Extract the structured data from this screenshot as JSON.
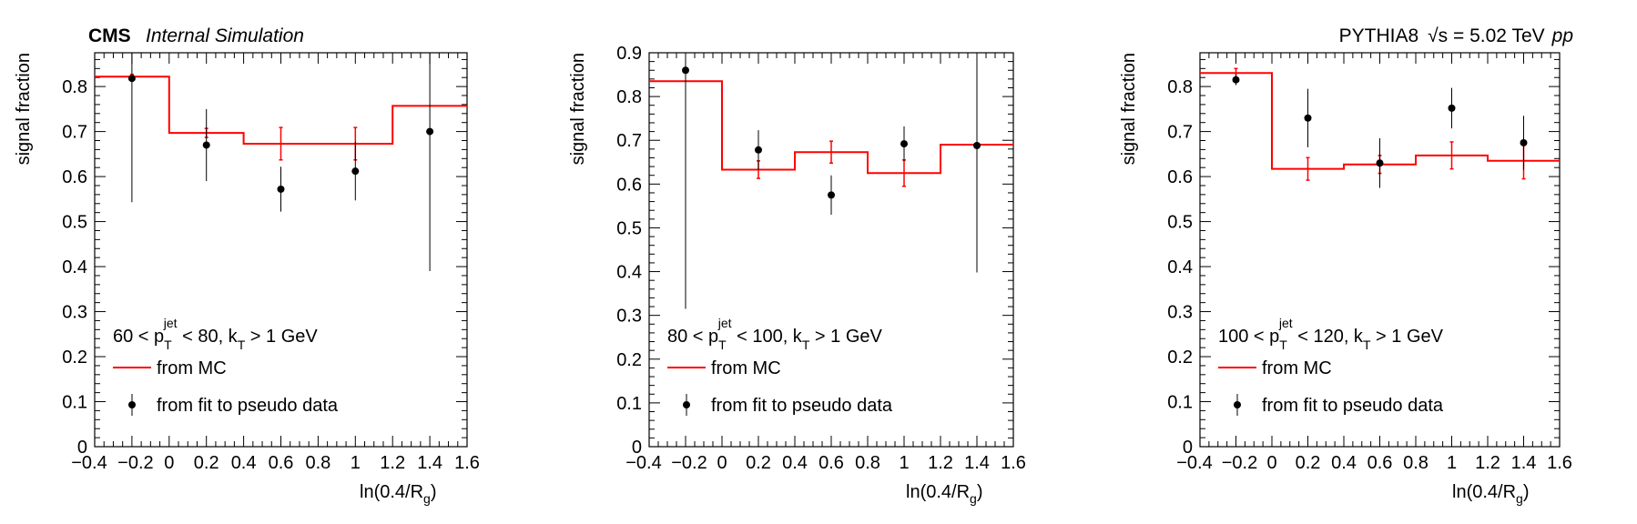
{
  "header": {
    "experiment": "CMS",
    "status": "Internal Simulation",
    "generator": "PYTHIA8",
    "energy_label": "√s = 5.02 TeV",
    "system": "pp"
  },
  "legend": {
    "mc_label": "from MC",
    "fit_label": "from fit to pseudo data",
    "mc_color": "#ff0000",
    "fit_color": "#000000"
  },
  "chart_data": [
    {
      "type": "line",
      "panel_label": "60 < p_T^jet < 80, k_T > 1 GeV",
      "xlabel": "ln(0.4/R_g)",
      "ylabel": "signal fraction",
      "xlim": [
        -0.4,
        1.6
      ],
      "ylim": [
        0,
        0.875
      ],
      "xticks": [
        -0.4,
        -0.2,
        0,
        0.2,
        0.4,
        0.6,
        0.8,
        1,
        1.2,
        1.4,
        1.6
      ],
      "yticks": [
        0,
        0.1,
        0.2,
        0.3,
        0.4,
        0.5,
        0.6,
        0.7,
        0.8
      ],
      "mc": {
        "name": "from MC",
        "bin_edges": [
          -0.4,
          0,
          0.4,
          0.8,
          1.2,
          1.6
        ],
        "values": [
          0.822,
          0.697,
          0.673,
          0.673,
          0.757
        ],
        "errors": [
          0.005,
          0.01,
          0.036,
          0.036,
          0.0
        ]
      },
      "fit": {
        "name": "from fit to pseudo data",
        "x": [
          -0.2,
          0.2,
          0.6,
          1.0,
          1.4
        ],
        "y": [
          0.818,
          0.67,
          0.572,
          0.612,
          0.7
        ],
        "yerr": [
          0.275,
          0.08,
          0.05,
          0.065,
          0.31
        ]
      }
    },
    {
      "type": "line",
      "panel_label": "80 < p_T^jet < 100, k_T > 1 GeV",
      "xlabel": "ln(0.4/R_g)",
      "ylabel": "signal fraction",
      "xlim": [
        -0.4,
        1.6
      ],
      "ylim": [
        0,
        0.9
      ],
      "xticks": [
        -0.4,
        -0.2,
        0,
        0.2,
        0.4,
        0.6,
        0.8,
        1,
        1.2,
        1.4,
        1.6
      ],
      "yticks": [
        0,
        0.1,
        0.2,
        0.3,
        0.4,
        0.5,
        0.6,
        0.7,
        0.8,
        0.9
      ],
      "mc": {
        "name": "from MC",
        "bin_edges": [
          -0.4,
          0,
          0.4,
          0.8,
          1.2,
          1.6
        ],
        "values": [
          0.835,
          0.633,
          0.673,
          0.625,
          0.69
        ],
        "errors": [
          0.0,
          0.02,
          0.025,
          0.03,
          0.0
        ]
      },
      "fit": {
        "name": "from fit to pseudo data",
        "x": [
          -0.2,
          0.2,
          0.6,
          1.0,
          1.4
        ],
        "y": [
          0.86,
          0.678,
          0.575,
          0.692,
          0.688
        ],
        "yerr": [
          0.545,
          0.045,
          0.045,
          0.04,
          0.29
        ]
      }
    },
    {
      "type": "line",
      "panel_label": "100 < p_T^jet < 120, k_T > 1 GeV",
      "xlabel": "ln(0.4/R_g)",
      "ylabel": "signal fraction",
      "xlim": [
        -0.4,
        1.6
      ],
      "ylim": [
        0,
        0.875
      ],
      "xticks": [
        -0.4,
        -0.2,
        0,
        0.2,
        0.4,
        0.6,
        0.8,
        1,
        1.2,
        1.4,
        1.6
      ],
      "yticks": [
        0,
        0.1,
        0.2,
        0.3,
        0.4,
        0.5,
        0.6,
        0.7,
        0.8
      ],
      "mc": {
        "name": "from MC",
        "bin_edges": [
          -0.4,
          0,
          0.4,
          0.8,
          1.2,
          1.6
        ],
        "values": [
          0.83,
          0.617,
          0.627,
          0.647,
          0.635
        ],
        "errors": [
          0.01,
          0.025,
          0.02,
          0.03,
          0.04
        ]
      },
      "fit": {
        "name": "from fit to pseudo data",
        "x": [
          -0.2,
          0.2,
          0.6,
          1.0,
          1.4
        ],
        "y": [
          0.815,
          0.73,
          0.63,
          0.752,
          0.675
        ],
        "yerr": [
          0.012,
          0.065,
          0.055,
          0.045,
          0.06
        ]
      }
    }
  ]
}
